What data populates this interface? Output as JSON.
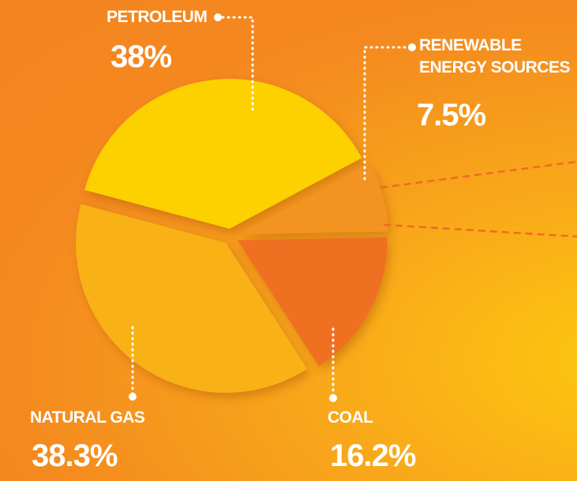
{
  "chart_data": {
    "type": "pie",
    "categories": [
      "PETROLEUM",
      "RENEWABLE ENERGY SOURCES",
      "COAL",
      "NATURAL GAS"
    ],
    "values": [
      38,
      7.5,
      16.2,
      38.3
    ],
    "value_labels": [
      "38%",
      "7.5%",
      "16.2%",
      "38.3%"
    ],
    "colors": [
      "#fdd000",
      "#f39320",
      "#f07022",
      "#f9b217"
    ]
  }
}
